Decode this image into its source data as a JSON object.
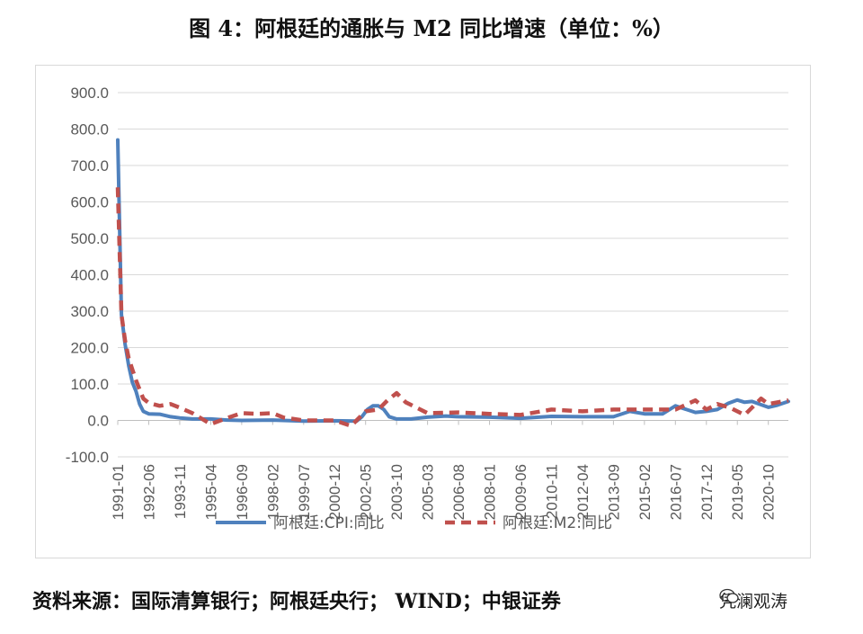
{
  "title": "图 4：阿根廷的通胀与 M2 同比增速（单位：%）",
  "source": "资料来源：国际清算银行；阿根廷央行；  WIND；中银证券",
  "watermark": {
    "text": "凭澜观涛",
    "icon": "wechat-icon"
  },
  "chart_data": {
    "type": "line",
    "title": "图 4：阿根廷的通胀与 M2 同比增速（单位：%）",
    "ylim": [
      -100,
      900
    ],
    "yticks": [
      "-100.0",
      "0.0",
      "100.0",
      "200.0",
      "300.0",
      "400.0",
      "500.0",
      "600.0",
      "700.0",
      "800.0",
      "900.0"
    ],
    "xticks": [
      "1991-01",
      "1992-06",
      "1993-11",
      "1995-04",
      "1996-09",
      "1998-02",
      "1999-07",
      "2000-12",
      "2002-05",
      "2003-10",
      "2005-03",
      "2006-08",
      "2008-01",
      "2009-06",
      "2010-11",
      "2012-04",
      "2013-09",
      "2015-02",
      "2016-07",
      "2017-12",
      "2019-05",
      "2020-10"
    ],
    "grid": true,
    "legend": "bottom",
    "series": [
      {
        "name": "阿根廷:CPI:同比",
        "color": "#4f81bd",
        "style": "solid",
        "points": [
          [
            "1991-01",
            770
          ],
          [
            "1991-03",
            290
          ],
          [
            "1991-05",
            210
          ],
          [
            "1991-07",
            150
          ],
          [
            "1991-09",
            105
          ],
          [
            "1991-11",
            80
          ],
          [
            "1992-01",
            45
          ],
          [
            "1992-03",
            25
          ],
          [
            "1992-06",
            18
          ],
          [
            "1992-12",
            17
          ],
          [
            "1993-06",
            10
          ],
          [
            "1993-11",
            7
          ],
          [
            "1994-06",
            4
          ],
          [
            "1995-04",
            4
          ],
          [
            "1996-01",
            1
          ],
          [
            "1996-09",
            0
          ],
          [
            "1998-02",
            1
          ],
          [
            "1999-07",
            -2
          ],
          [
            "2000-12",
            -1
          ],
          [
            "2001-12",
            -2
          ],
          [
            "2002-03",
            10
          ],
          [
            "2002-06",
            30
          ],
          [
            "2002-09",
            40
          ],
          [
            "2002-12",
            40
          ],
          [
            "2003-03",
            30
          ],
          [
            "2003-06",
            10
          ],
          [
            "2003-10",
            4
          ],
          [
            "2004-06",
            4
          ],
          [
            "2005-03",
            9
          ],
          [
            "2006-01",
            12
          ],
          [
            "2006-08",
            10
          ],
          [
            "2008-01",
            9
          ],
          [
            "2009-06",
            6
          ],
          [
            "2010-11",
            11
          ],
          [
            "2012-04",
            10
          ],
          [
            "2013-09",
            10
          ],
          [
            "2014-06",
            25
          ],
          [
            "2015-02",
            18
          ],
          [
            "2015-12",
            18
          ],
          [
            "2016-07",
            40
          ],
          [
            "2017-06",
            22
          ],
          [
            "2017-12",
            25
          ],
          [
            "2018-06",
            30
          ],
          [
            "2018-12",
            47
          ],
          [
            "2019-05",
            56
          ],
          [
            "2019-09",
            50
          ],
          [
            "2020-01",
            52
          ],
          [
            "2020-10",
            36
          ],
          [
            "2021-03",
            42
          ],
          [
            "2021-09",
            52
          ]
        ]
      },
      {
        "name": "阿根廷:M2:同比",
        "color": "#c0504d",
        "style": "dashed",
        "points": [
          [
            "1991-01",
            640
          ],
          [
            "1991-03",
            290
          ],
          [
            "1991-05",
            220
          ],
          [
            "1991-07",
            170
          ],
          [
            "1991-09",
            140
          ],
          [
            "1991-11",
            110
          ],
          [
            "1992-01",
            85
          ],
          [
            "1992-03",
            60
          ],
          [
            "1992-06",
            48
          ],
          [
            "1992-12",
            40
          ],
          [
            "1993-06",
            45
          ],
          [
            "1993-11",
            35
          ],
          [
            "1994-06",
            20
          ],
          [
            "1995-04",
            -10
          ],
          [
            "1995-12",
            5
          ],
          [
            "1996-09",
            20
          ],
          [
            "1997-06",
            18
          ],
          [
            "1998-02",
            20
          ],
          [
            "1998-08",
            8
          ],
          [
            "1999-07",
            0
          ],
          [
            "2000-12",
            0
          ],
          [
            "2001-09",
            -15
          ],
          [
            "2002-05",
            25
          ],
          [
            "2002-12",
            30
          ],
          [
            "2003-05",
            55
          ],
          [
            "2003-10",
            75
          ],
          [
            "2004-03",
            50
          ],
          [
            "2005-03",
            20
          ],
          [
            "2006-08",
            22
          ],
          [
            "2008-01",
            18
          ],
          [
            "2009-06",
            15
          ],
          [
            "2010-11",
            30
          ],
          [
            "2012-04",
            25
          ],
          [
            "2013-09",
            30
          ],
          [
            "2015-02",
            30
          ],
          [
            "2016-07",
            30
          ],
          [
            "2017-06",
            55
          ],
          [
            "2017-12",
            30
          ],
          [
            "2018-06",
            45
          ],
          [
            "2019-01",
            35
          ],
          [
            "2019-05",
            25
          ],
          [
            "2019-09",
            15
          ],
          [
            "2020-06",
            60
          ],
          [
            "2020-10",
            45
          ],
          [
            "2021-09",
            55
          ]
        ]
      }
    ]
  }
}
